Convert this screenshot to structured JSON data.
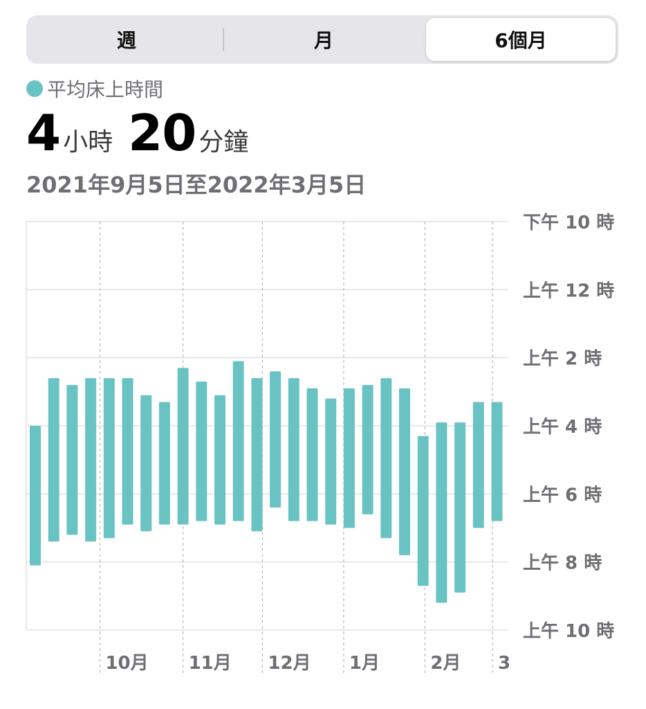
{
  "segments": [
    {
      "label": "週",
      "selected": false
    },
    {
      "label": "月",
      "selected": false
    },
    {
      "label": "6個月",
      "selected": true
    }
  ],
  "legend": {
    "label": "平均床上時間",
    "color": "#6ac3c3"
  },
  "summary": {
    "hours": "4",
    "hours_unit": "小時",
    "minutes": "20",
    "minutes_unit": "分鐘"
  },
  "date_range": "2021年9月5日至2022年3月5日",
  "chart_data": {
    "type": "bar",
    "subtype": "floating-range",
    "series": [
      {
        "color": "#6ac3c3",
        "ranges": [
          [
            4.0,
            8.1
          ],
          [
            2.6,
            7.4
          ],
          [
            2.8,
            7.2
          ],
          [
            2.6,
            7.4
          ],
          [
            2.6,
            7.3
          ],
          [
            2.6,
            6.9
          ],
          [
            3.1,
            7.1
          ],
          [
            3.3,
            6.9
          ],
          [
            2.3,
            6.9
          ],
          [
            2.7,
            6.8
          ],
          [
            3.1,
            6.9
          ],
          [
            2.1,
            6.8
          ],
          [
            2.6,
            7.1
          ],
          [
            2.4,
            6.4
          ],
          [
            2.6,
            6.8
          ],
          [
            2.9,
            6.8
          ],
          [
            3.2,
            6.9
          ],
          [
            2.9,
            7.0
          ],
          [
            2.8,
            6.6
          ],
          [
            2.6,
            7.3
          ],
          [
            2.9,
            7.8
          ],
          [
            4.3,
            8.7
          ],
          [
            3.9,
            9.2
          ],
          [
            3.9,
            8.9
          ],
          [
            3.3,
            7.0
          ],
          [
            3.3,
            6.8
          ]
        ]
      }
    ],
    "y_axis": {
      "reversed": true,
      "range": [
        -2,
        10
      ],
      "unit": "hours relative to midnight",
      "ticks": [
        {
          "value": -2,
          "label": "下午 10 時"
        },
        {
          "value": 0,
          "label": "上午 12 時"
        },
        {
          "value": 2,
          "label": "上午 2 時"
        },
        {
          "value": 4,
          "label": "上午 4 時"
        },
        {
          "value": 6,
          "label": "上午 6 時"
        },
        {
          "value": 8,
          "label": "上午 8 時"
        },
        {
          "value": 10,
          "label": "上午 10 時"
        }
      ]
    },
    "x_axis": {
      "month_markers": [
        {
          "index": 3.5,
          "label": "10月"
        },
        {
          "index": 8,
          "label": "11月"
        },
        {
          "index": 12.3,
          "label": "12月"
        },
        {
          "index": 16.7,
          "label": "1月"
        },
        {
          "index": 21.1,
          "label": "2月"
        },
        {
          "index": 25.1,
          "label": "3"
        }
      ]
    },
    "grid": true
  }
}
